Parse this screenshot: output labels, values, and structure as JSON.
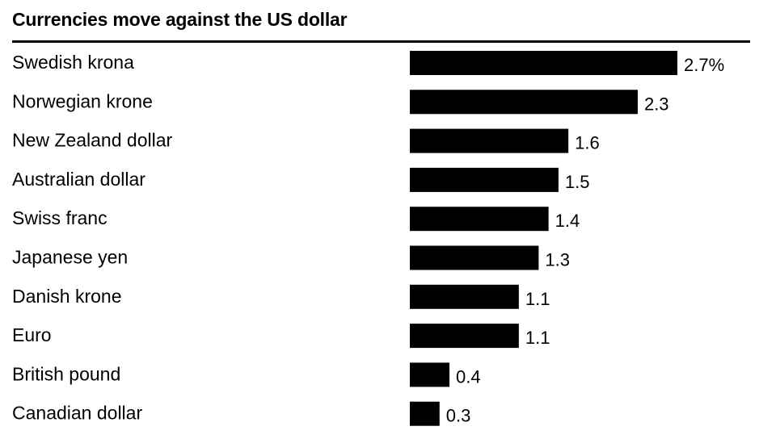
{
  "chart_data": {
    "type": "bar",
    "orientation": "horizontal",
    "title": "Currencies move against the US dollar",
    "categories": [
      "Swedish krona",
      "Norwegian krone",
      "New Zealand dollar",
      "Australian dollar",
      "Swiss franc",
      "Japanese yen",
      "Danish krone",
      "Euro",
      "British pound",
      "Canadian dollar"
    ],
    "values": [
      2.7,
      2.3,
      1.6,
      1.5,
      1.4,
      1.3,
      1.1,
      1.1,
      0.4,
      0.3
    ],
    "value_labels": [
      "2.7%",
      "2.3",
      "1.6",
      "1.5",
      "1.4",
      "1.3",
      "1.1",
      "1.1",
      "0.4",
      "0.3"
    ],
    "xlim": [
      0,
      2.7
    ],
    "grid": false,
    "legend": "none",
    "colors": {
      "bar": "#000000",
      "rule": "#000000",
      "text": "#000000",
      "background": "#ffffff"
    }
  }
}
